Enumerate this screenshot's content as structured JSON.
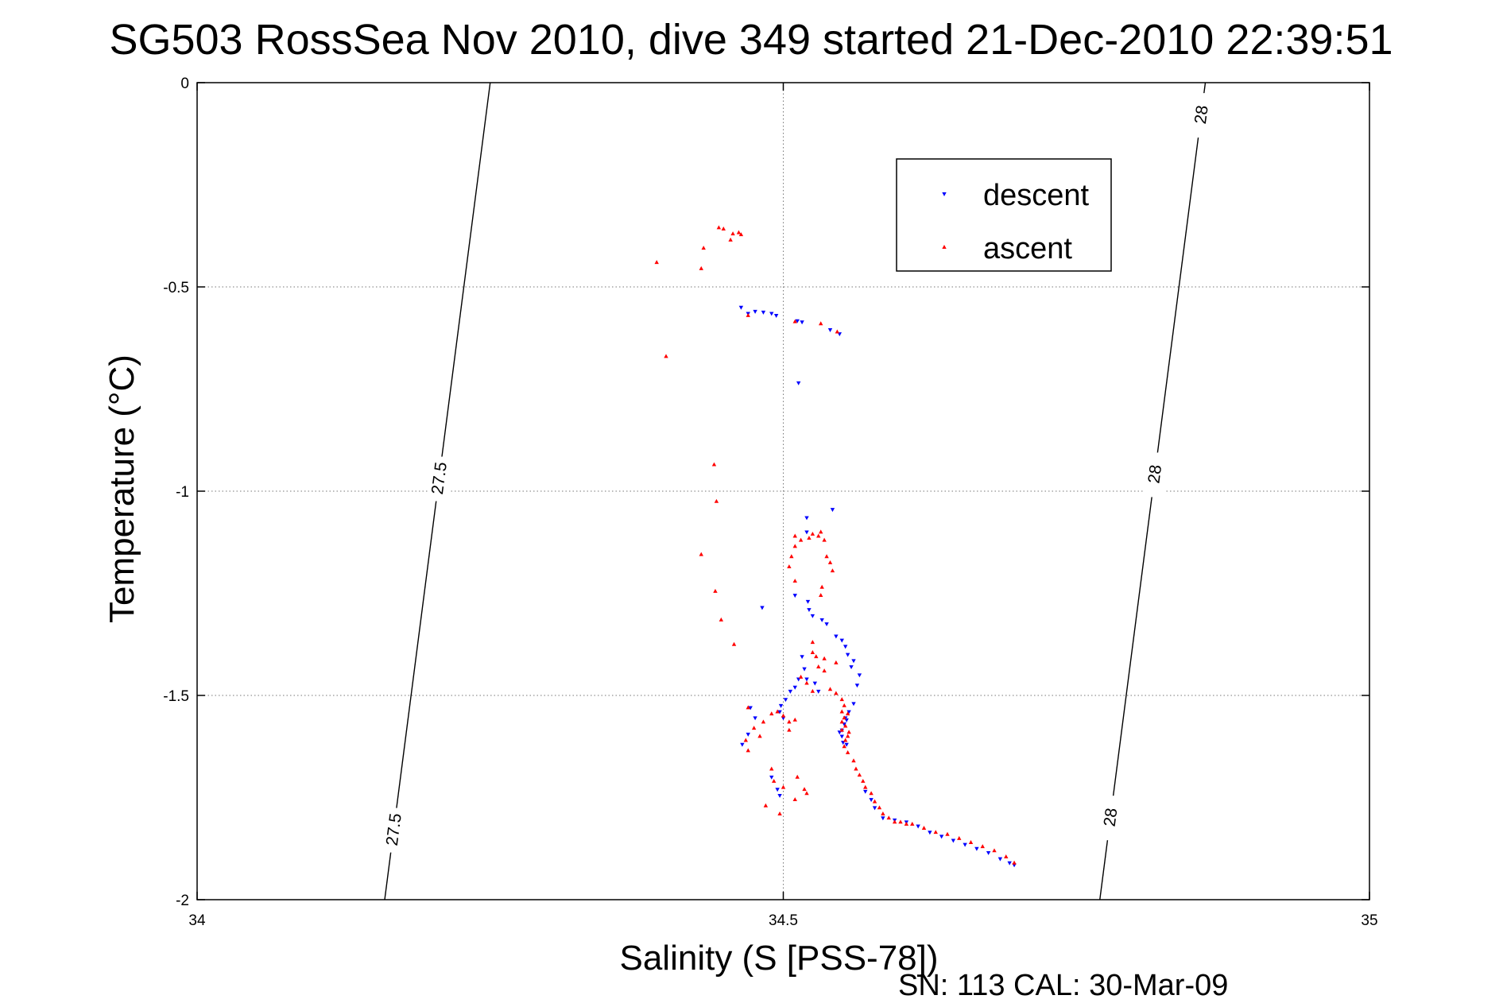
{
  "chart_data": {
    "type": "scatter",
    "title": "SG503 RossSea Nov 2010, dive 349 started 21-Dec-2010 22:39:51",
    "xlabel": "Salinity (S [PSS-78])",
    "ylabel": "Temperature (°C)",
    "xlim": [
      34,
      35
    ],
    "ylim": [
      -2,
      0
    ],
    "xticks": [
      34,
      34.5,
      35
    ],
    "xtick_labels": [
      "34",
      "34.5",
      "35"
    ],
    "yticks": [
      0,
      -0.5,
      -1,
      -1.5,
      -2
    ],
    "ytick_labels": [
      "0",
      "-0.5",
      "-1",
      "-1.5",
      "-2"
    ],
    "grid": true,
    "legend_position": "top-right",
    "footer": "SN: 113  CAL: 30-Mar-09",
    "contours": [
      {
        "label": "27.5",
        "points": [
          [
            34.16,
            -2.0
          ],
          [
            34.25,
            0.0
          ]
        ],
        "label_positions": [
          [
            34.17,
            -1.83
          ],
          [
            34.2,
            -0.97
          ]
        ]
      },
      {
        "label": "28",
        "points": [
          [
            34.77,
            -2.0
          ],
          [
            34.86,
            0.0
          ]
        ],
        "label_positions": [
          [
            34.78,
            -1.8
          ],
          [
            34.81,
            -0.96
          ],
          [
            34.86,
            -0.08
          ]
        ]
      }
    ],
    "series": [
      {
        "name": "descent",
        "color": "#0000ff",
        "marker": "triangle-down",
        "points": [
          [
            34.464,
            -0.55
          ],
          [
            34.47,
            -0.565
          ],
          [
            34.476,
            -0.56
          ],
          [
            34.483,
            -0.562
          ],
          [
            34.49,
            -0.565
          ],
          [
            34.494,
            -0.57
          ],
          [
            34.512,
            -0.583
          ],
          [
            34.516,
            -0.586
          ],
          [
            34.54,
            -0.605
          ],
          [
            34.548,
            -0.615
          ],
          [
            34.513,
            -0.735
          ],
          [
            34.542,
            -1.045
          ],
          [
            34.52,
            -1.065
          ],
          [
            34.52,
            -1.1
          ],
          [
            34.51,
            -1.255
          ],
          [
            34.521,
            -1.27
          ],
          [
            34.522,
            -1.29
          ],
          [
            34.525,
            -1.305
          ],
          [
            34.533,
            -1.315
          ],
          [
            34.537,
            -1.325
          ],
          [
            34.545,
            -1.355
          ],
          [
            34.55,
            -1.365
          ],
          [
            34.553,
            -1.38
          ],
          [
            34.555,
            -1.4
          ],
          [
            34.56,
            -1.415
          ],
          [
            34.558,
            -1.43
          ],
          [
            34.565,
            -1.45
          ],
          [
            34.563,
            -1.475
          ],
          [
            34.56,
            -1.52
          ],
          [
            34.556,
            -1.54
          ],
          [
            34.553,
            -1.555
          ],
          [
            34.552,
            -1.57
          ],
          [
            34.55,
            -1.585
          ],
          [
            34.55,
            -1.6
          ],
          [
            34.551,
            -1.615
          ],
          [
            34.554,
            -1.62
          ],
          [
            34.516,
            -1.405
          ],
          [
            34.518,
            -1.435
          ],
          [
            34.513,
            -1.46
          ],
          [
            34.51,
            -1.48
          ],
          [
            34.506,
            -1.49
          ],
          [
            34.502,
            -1.51
          ],
          [
            34.498,
            -1.525
          ],
          [
            34.497,
            -1.54
          ],
          [
            34.5,
            -1.555
          ],
          [
            34.472,
            -1.53
          ],
          [
            34.476,
            -1.555
          ],
          [
            34.47,
            -1.595
          ],
          [
            34.465,
            -1.62
          ],
          [
            34.482,
            -1.285
          ],
          [
            34.49,
            -1.7
          ],
          [
            34.495,
            -1.73
          ],
          [
            34.497,
            -1.745
          ],
          [
            34.57,
            -1.735
          ],
          [
            34.575,
            -1.755
          ],
          [
            34.578,
            -1.775
          ],
          [
            34.585,
            -1.8
          ],
          [
            34.595,
            -1.805
          ],
          [
            34.605,
            -1.81
          ],
          [
            34.615,
            -1.82
          ],
          [
            34.625,
            -1.835
          ],
          [
            34.635,
            -1.845
          ],
          [
            34.645,
            -1.855
          ],
          [
            34.655,
            -1.865
          ],
          [
            34.665,
            -1.875
          ],
          [
            34.675,
            -1.885
          ],
          [
            34.685,
            -1.9
          ],
          [
            34.693,
            -1.91
          ],
          [
            34.697,
            -1.915
          ],
          [
            34.52,
            -1.46
          ],
          [
            34.527,
            -1.47
          ],
          [
            34.53,
            -1.49
          ],
          [
            34.548,
            -1.59
          ],
          [
            34.554,
            -1.56
          ]
        ]
      },
      {
        "name": "ascent",
        "color": "#ff0000",
        "marker": "triangle-up",
        "points": [
          [
            34.445,
            -0.355
          ],
          [
            34.449,
            -0.358
          ],
          [
            34.457,
            -0.37
          ],
          [
            34.462,
            -0.367
          ],
          [
            34.464,
            -0.372
          ],
          [
            34.455,
            -0.385
          ],
          [
            34.432,
            -0.405
          ],
          [
            34.392,
            -0.44
          ],
          [
            34.43,
            -0.455
          ],
          [
            34.4,
            -0.67
          ],
          [
            34.47,
            -0.57
          ],
          [
            34.51,
            -0.585
          ],
          [
            34.532,
            -0.59
          ],
          [
            34.546,
            -0.61
          ],
          [
            34.441,
            -0.935
          ],
          [
            34.443,
            -1.025
          ],
          [
            34.43,
            -1.155
          ],
          [
            34.442,
            -1.245
          ],
          [
            34.447,
            -1.315
          ],
          [
            34.458,
            -1.375
          ],
          [
            34.51,
            -1.11
          ],
          [
            34.515,
            -1.12
          ],
          [
            34.522,
            -1.115
          ],
          [
            34.525,
            -1.105
          ],
          [
            34.53,
            -1.11
          ],
          [
            34.532,
            -1.1
          ],
          [
            34.535,
            -1.12
          ],
          [
            34.51,
            -1.135
          ],
          [
            34.507,
            -1.16
          ],
          [
            34.505,
            -1.185
          ],
          [
            34.51,
            -1.22
          ],
          [
            34.537,
            -1.16
          ],
          [
            34.54,
            -1.175
          ],
          [
            34.542,
            -1.195
          ],
          [
            34.533,
            -1.235
          ],
          [
            34.532,
            -1.255
          ],
          [
            34.525,
            -1.37
          ],
          [
            34.525,
            -1.395
          ],
          [
            34.528,
            -1.405
          ],
          [
            34.535,
            -1.41
          ],
          [
            34.545,
            -1.42
          ],
          [
            34.53,
            -1.43
          ],
          [
            34.535,
            -1.44
          ],
          [
            34.515,
            -1.455
          ],
          [
            34.52,
            -1.47
          ],
          [
            34.525,
            -1.49
          ],
          [
            34.54,
            -1.485
          ],
          [
            34.545,
            -1.495
          ],
          [
            34.55,
            -1.51
          ],
          [
            34.552,
            -1.525
          ],
          [
            34.55,
            -1.54
          ],
          [
            34.555,
            -1.545
          ],
          [
            34.552,
            -1.555
          ],
          [
            34.55,
            -1.565
          ],
          [
            34.553,
            -1.575
          ],
          [
            34.55,
            -1.585
          ],
          [
            34.556,
            -1.59
          ],
          [
            34.555,
            -1.6
          ],
          [
            34.553,
            -1.61
          ],
          [
            34.552,
            -1.625
          ],
          [
            34.555,
            -1.64
          ],
          [
            34.56,
            -1.66
          ],
          [
            34.562,
            -1.68
          ],
          [
            34.565,
            -1.695
          ],
          [
            34.568,
            -1.71
          ],
          [
            34.57,
            -1.725
          ],
          [
            34.575,
            -1.74
          ],
          [
            34.578,
            -1.76
          ],
          [
            34.582,
            -1.775
          ],
          [
            34.585,
            -1.79
          ],
          [
            34.59,
            -1.8
          ],
          [
            34.6,
            -1.81
          ],
          [
            34.61,
            -1.815
          ],
          [
            34.62,
            -1.825
          ],
          [
            34.63,
            -1.835
          ],
          [
            34.64,
            -1.84
          ],
          [
            34.65,
            -1.85
          ],
          [
            34.66,
            -1.86
          ],
          [
            34.67,
            -1.87
          ],
          [
            34.68,
            -1.88
          ],
          [
            34.69,
            -1.895
          ],
          [
            34.697,
            -1.91
          ],
          [
            34.605,
            -1.815
          ],
          [
            34.595,
            -1.81
          ],
          [
            34.47,
            -1.53
          ],
          [
            34.475,
            -1.58
          ],
          [
            34.48,
            -1.6
          ],
          [
            34.468,
            -1.61
          ],
          [
            34.47,
            -1.635
          ],
          [
            34.483,
            -1.565
          ],
          [
            34.49,
            -1.545
          ],
          [
            34.495,
            -1.54
          ],
          [
            34.5,
            -1.55
          ],
          [
            34.505,
            -1.565
          ],
          [
            34.51,
            -1.56
          ],
          [
            34.505,
            -1.585
          ],
          [
            34.49,
            -1.68
          ],
          [
            34.492,
            -1.71
          ],
          [
            34.5,
            -1.725
          ],
          [
            34.512,
            -1.7
          ],
          [
            34.518,
            -1.73
          ],
          [
            34.52,
            -1.74
          ],
          [
            34.51,
            -1.755
          ],
          [
            34.485,
            -1.77
          ],
          [
            34.497,
            -1.79
          ]
        ]
      }
    ]
  }
}
